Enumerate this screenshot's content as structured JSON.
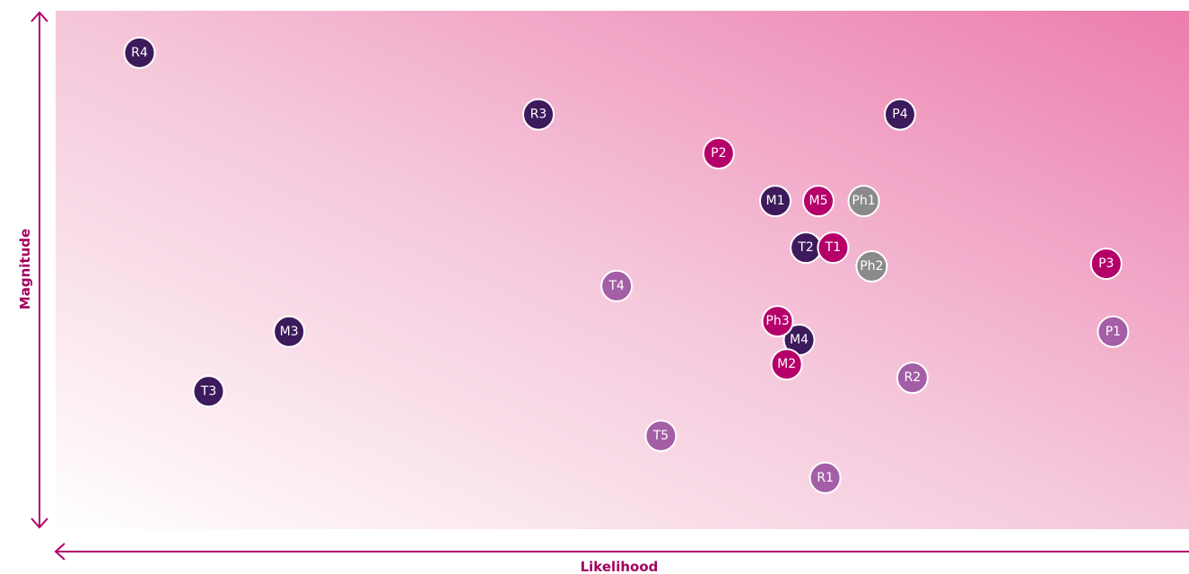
{
  "chart_data": {
    "type": "scatter",
    "x_label": "Likelihood",
    "y_label": "Magnitude",
    "xlim": [
      0,
      100
    ],
    "ylim": [
      0,
      100
    ],
    "points": [
      {
        "label": "R4",
        "x": 7.4,
        "y": 91.9,
        "color": "#3d1a5b"
      },
      {
        "label": "R3",
        "x": 42.6,
        "y": 80.0,
        "color": "#3d1a5b"
      },
      {
        "label": "P4",
        "x": 74.5,
        "y": 80.0,
        "color": "#3d1a5b"
      },
      {
        "label": "P2",
        "x": 58.5,
        "y": 72.5,
        "color": "#b5006a"
      },
      {
        "label": "M1",
        "x": 63.5,
        "y": 63.3,
        "color": "#3d1a5b"
      },
      {
        "label": "M5",
        "x": 67.3,
        "y": 63.3,
        "color": "#b5006a"
      },
      {
        "label": "Ph1",
        "x": 71.3,
        "y": 63.3,
        "color": "#8a8a8a"
      },
      {
        "label": "T2",
        "x": 66.2,
        "y": 54.3,
        "color": "#3d1a5b"
      },
      {
        "label": "T1",
        "x": 68.6,
        "y": 54.3,
        "color": "#b5006a"
      },
      {
        "label": "Ph2",
        "x": 72.0,
        "y": 50.7,
        "color": "#8a8a8a"
      },
      {
        "label": "P3",
        "x": 92.7,
        "y": 51.2,
        "color": "#b5006a"
      },
      {
        "label": "T4",
        "x": 49.5,
        "y": 46.9,
        "color": "#a35ea6"
      },
      {
        "label": "M3",
        "x": 20.6,
        "y": 38.1,
        "color": "#3d1a5b"
      },
      {
        "label": "M4",
        "x": 65.6,
        "y": 36.5,
        "color": "#3d1a5b"
      },
      {
        "label": "Ph3",
        "x": 63.7,
        "y": 40.1,
        "color": "#b5006a"
      },
      {
        "label": "M2",
        "x": 64.5,
        "y": 31.8,
        "color": "#b5006a"
      },
      {
        "label": "P1",
        "x": 93.3,
        "y": 38.1,
        "color": "#a35ea6"
      },
      {
        "label": "R2",
        "x": 75.6,
        "y": 29.2,
        "color": "#a35ea6"
      },
      {
        "label": "T3",
        "x": 13.5,
        "y": 26.6,
        "color": "#3d1a5b"
      },
      {
        "label": "T5",
        "x": 53.4,
        "y": 18.0,
        "color": "#a35ea6"
      },
      {
        "label": "R1",
        "x": 67.9,
        "y": 9.9,
        "color": "#a35ea6"
      }
    ]
  }
}
